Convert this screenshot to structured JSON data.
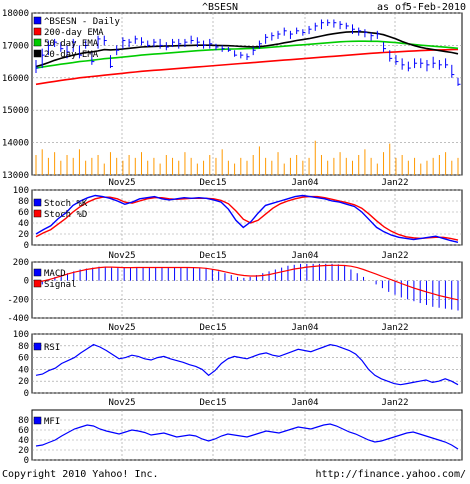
{
  "header": {
    "symbol": "^BSESN",
    "as_of_label": "as of",
    "date": "5-Feb-2010"
  },
  "footer": {
    "copyright": "Copyright 2010 Yahoo! Inc.",
    "url": "http://finance.yahoo.com/"
  },
  "colors": {
    "price_bar": "#0000ff",
    "ema200": "#ff0000",
    "ema50": "#00cc00",
    "ema20": "#000000",
    "volume": "#ff9900",
    "stoch_k": "#0000ff",
    "stoch_d": "#ff0000",
    "macd_hist": "#0000ff",
    "macd_signal": "#ff0000",
    "rsi": "#0000ff",
    "mfi": "#0000ff",
    "grid": "#999999"
  },
  "chart_data": [
    {
      "type": "line",
      "panel": "price",
      "legend": [
        "^BSESN - Daily",
        "200-day EMA",
        "50-day EMA",
        "20-day EMA"
      ],
      "ylim": [
        13000,
        18000
      ],
      "yticks": [
        13000,
        14000,
        15000,
        16000,
        17000,
        18000
      ],
      "xtick_labels": [
        "Nov25",
        "Dec15",
        "Jan04",
        "Jan22"
      ],
      "grid": true,
      "legend_placement": "top-left",
      "bars": [
        [
          0,
          16150,
          16550,
          16300
        ],
        [
          1,
          16300,
          16900,
          16700
        ],
        [
          2,
          16700,
          17150,
          17000
        ],
        [
          3,
          16950,
          17200,
          17100
        ],
        [
          4,
          16800,
          17100,
          16900
        ],
        [
          5,
          16600,
          17000,
          16800
        ],
        [
          6,
          16800,
          17200,
          17100
        ],
        [
          7,
          16600,
          17000,
          16700
        ],
        [
          8,
          16900,
          17150,
          17000
        ],
        [
          9,
          16400,
          16800,
          16500
        ],
        [
          10,
          16900,
          17300,
          17200
        ],
        [
          11,
          17000,
          17300,
          17150
        ],
        [
          12,
          16300,
          16700,
          16350
        ],
        [
          13,
          16700,
          17000,
          16850
        ],
        [
          14,
          16900,
          17250,
          17150
        ],
        [
          15,
          16950,
          17200,
          17100
        ],
        [
          16,
          17050,
          17300,
          17200
        ],
        [
          17,
          17000,
          17250,
          17100
        ],
        [
          18,
          16950,
          17150,
          17000
        ],
        [
          19,
          16950,
          17200,
          17100
        ],
        [
          20,
          16900,
          17200,
          17000
        ],
        [
          21,
          16850,
          17100,
          16950
        ],
        [
          22,
          16950,
          17200,
          17100
        ],
        [
          23,
          16900,
          17200,
          17050
        ],
        [
          24,
          16950,
          17200,
          17100
        ],
        [
          25,
          17050,
          17300,
          17150
        ],
        [
          26,
          16950,
          17250,
          17100
        ],
        [
          27,
          16900,
          17150,
          17000
        ],
        [
          28,
          16900,
          17200,
          17050
        ],
        [
          29,
          16850,
          17050,
          16950
        ],
        [
          30,
          16800,
          17000,
          16900
        ],
        [
          31,
          16800,
          16950,
          16850
        ],
        [
          32,
          16650,
          16850,
          16700
        ],
        [
          33,
          16600,
          16800,
          16700
        ],
        [
          34,
          16550,
          16750,
          16650
        ],
        [
          35,
          16700,
          16950,
          16850
        ],
        [
          36,
          16900,
          17150,
          17050
        ],
        [
          37,
          17050,
          17350,
          17250
        ],
        [
          38,
          17150,
          17400,
          17300
        ],
        [
          39,
          17200,
          17450,
          17350
        ],
        [
          40,
          17300,
          17550,
          17450
        ],
        [
          41,
          17200,
          17450,
          17350
        ],
        [
          42,
          17350,
          17550,
          17450
        ],
        [
          43,
          17300,
          17500,
          17400
        ],
        [
          44,
          17350,
          17600,
          17500
        ],
        [
          45,
          17450,
          17700,
          17600
        ],
        [
          46,
          17500,
          17800,
          17700
        ],
        [
          47,
          17600,
          17800,
          17700
        ],
        [
          48,
          17550,
          17800,
          17700
        ],
        [
          49,
          17500,
          17750,
          17650
        ],
        [
          50,
          17500,
          17700,
          17600
        ],
        [
          51,
          17350,
          17650,
          17500
        ],
        [
          52,
          17300,
          17550,
          17450
        ],
        [
          53,
          17250,
          17500,
          17400
        ],
        [
          54,
          17150,
          17400,
          17300
        ],
        [
          55,
          17200,
          17450,
          17350
        ],
        [
          56,
          16800,
          17100,
          16900
        ],
        [
          57,
          16500,
          16850,
          16600
        ],
        [
          58,
          16400,
          16700,
          16500
        ],
        [
          59,
          16250,
          16600,
          16400
        ],
        [
          60,
          16200,
          16500,
          16300
        ],
        [
          61,
          16300,
          16600,
          16450
        ],
        [
          62,
          16300,
          16600,
          16450
        ],
        [
          63,
          16200,
          16550,
          16400
        ],
        [
          64,
          16300,
          16650,
          16450
        ],
        [
          65,
          16250,
          16550,
          16400
        ],
        [
          66,
          16300,
          16600,
          16400
        ],
        [
          67,
          16000,
          16400,
          16100
        ],
        [
          68,
          15750,
          16000,
          15800
        ]
      ],
      "ema200": [
        15800,
        15830,
        15860,
        15890,
        15920,
        15945,
        15970,
        16000,
        16020,
        16040,
        16060,
        16080,
        16100,
        16120,
        16140,
        16160,
        16180,
        16200,
        16215,
        16230,
        16245,
        16260,
        16275,
        16290,
        16305,
        16320,
        16335,
        16350,
        16365,
        16380,
        16395,
        16410,
        16425,
        16440,
        16455,
        16470,
        16485,
        16500,
        16515,
        16530,
        16545,
        16560,
        16575,
        16590,
        16605,
        16620,
        16635,
        16650,
        16665,
        16680,
        16695,
        16710,
        16725,
        16740,
        16755,
        16770,
        16780,
        16790,
        16800,
        16810,
        16820,
        16830,
        16840,
        16850,
        16855,
        16860,
        16865,
        16870,
        16875
      ],
      "ema50": [
        16300,
        16330,
        16360,
        16390,
        16420,
        16445,
        16470,
        16500,
        16520,
        16540,
        16565,
        16590,
        16605,
        16620,
        16640,
        16660,
        16680,
        16700,
        16715,
        16730,
        16745,
        16760,
        16775,
        16790,
        16805,
        16820,
        16835,
        16850,
        16860,
        16870,
        16880,
        16885,
        16890,
        16895,
        16900,
        16905,
        16915,
        16930,
        16945,
        16960,
        16975,
        16990,
        17005,
        17020,
        17035,
        17050,
        17065,
        17080,
        17095,
        17110,
        17120,
        17125,
        17130,
        17130,
        17128,
        17125,
        17115,
        17100,
        17085,
        17065,
        17045,
        17025,
        17005,
        16990,
        16975,
        16960,
        16945,
        16930,
        16910
      ],
      "ema20": [
        16350,
        16400,
        16470,
        16540,
        16600,
        16650,
        16700,
        16740,
        16780,
        16800,
        16830,
        16870,
        16860,
        16870,
        16890,
        16910,
        16930,
        16950,
        16960,
        16970,
        16975,
        16980,
        16985,
        16990,
        16995,
        17000,
        17005,
        17005,
        17005,
        17000,
        16995,
        16990,
        16980,
        16970,
        16960,
        16955,
        16960,
        16980,
        17010,
        17040,
        17080,
        17110,
        17150,
        17180,
        17210,
        17250,
        17290,
        17330,
        17360,
        17390,
        17410,
        17420,
        17420,
        17410,
        17390,
        17370,
        17330,
        17270,
        17200,
        17120,
        17050,
        16990,
        16940,
        16900,
        16870,
        16840,
        16810,
        16780,
        16740
      ]
    },
    {
      "type": "bar",
      "panel": "volume",
      "values": [
        7,
        9,
        6,
        8,
        5,
        7,
        6,
        9,
        5,
        6,
        7,
        4,
        8,
        6,
        5,
        7,
        6,
        8,
        5,
        6,
        4,
        7,
        6,
        5,
        8,
        6,
        4,
        5,
        7,
        6,
        9,
        5,
        4,
        6,
        5,
        7,
        10,
        6,
        5,
        8,
        4,
        6,
        7,
        5,
        6,
        12,
        7,
        5,
        6,
        8,
        6,
        5,
        7,
        9,
        6,
        4,
        8,
        11,
        6,
        7,
        5,
        6,
        4,
        5,
        6,
        7,
        8,
        5,
        6
      ],
      "ymax": 14
    },
    {
      "type": "line",
      "panel": "stochastic",
      "legend": [
        "Stoch %K",
        "Stoch %D"
      ],
      "ylim": [
        0,
        100
      ],
      "yticks": [
        0,
        20,
        40,
        60,
        80,
        100
      ],
      "k": [
        20,
        28,
        35,
        48,
        58,
        72,
        80,
        86,
        90,
        88,
        85,
        80,
        74,
        78,
        84,
        86,
        88,
        84,
        82,
        84,
        86,
        85,
        86,
        85,
        82,
        78,
        65,
        45,
        32,
        42,
        58,
        72,
        76,
        80,
        84,
        88,
        90,
        88,
        86,
        84,
        80,
        78,
        74,
        70,
        60,
        46,
        32,
        24,
        18,
        14,
        12,
        10,
        12,
        14,
        16,
        12,
        8,
        5
      ],
      "d": [
        15,
        22,
        28,
        38,
        48,
        60,
        70,
        78,
        84,
        87,
        87,
        84,
        78,
        76,
        80,
        84,
        86,
        86,
        84,
        83,
        84,
        85,
        85,
        85,
        84,
        81,
        75,
        62,
        47,
        40,
        45,
        56,
        67,
        75,
        80,
        84,
        87,
        88,
        88,
        86,
        83,
        80,
        77,
        73,
        67,
        56,
        44,
        33,
        25,
        19,
        15,
        13,
        12,
        13,
        14,
        14,
        12,
        9
      ]
    },
    {
      "type": "bar",
      "panel": "macd",
      "legend": [
        "MACD",
        "Signal"
      ],
      "ylim": [
        -400,
        200
      ],
      "yticks": [
        -400,
        -200,
        0,
        200
      ],
      "hist": [
        -20,
        -40,
        10,
        40,
        60,
        80,
        100,
        120,
        130,
        140,
        150,
        150,
        140,
        135,
        140,
        145,
        145,
        140,
        140,
        140,
        140,
        140,
        140,
        140,
        140,
        140,
        140,
        135,
        120,
        100,
        80,
        60,
        40,
        30,
        40,
        60,
        80,
        100,
        120,
        140,
        160,
        170,
        180,
        180,
        180,
        180,
        180,
        180,
        175,
        160,
        120,
        80,
        40,
        0,
        -40,
        -80,
        -120,
        -150,
        -180,
        -200,
        -220,
        -240,
        -260,
        -280,
        -290,
        -300,
        -310,
        -320
      ],
      "signal": [
        -10,
        -5,
        10,
        30,
        50,
        70,
        90,
        105,
        120,
        130,
        140,
        145,
        145,
        142,
        140,
        140,
        141,
        141,
        141,
        141,
        141,
        141,
        141,
        141,
        141,
        140,
        138,
        132,
        122,
        110,
        95,
        80,
        65,
        55,
        50,
        50,
        55,
        65,
        80,
        95,
        110,
        125,
        135,
        145,
        152,
        158,
        162,
        165,
        165,
        162,
        155,
        140,
        120,
        95,
        70,
        45,
        20,
        -5,
        -30,
        -55,
        -80,
        -100,
        -120,
        -140,
        -160,
        -175,
        -190,
        -205
      ]
    },
    {
      "type": "line",
      "panel": "rsi",
      "legend": [
        "RSI"
      ],
      "ylim": [
        0,
        100
      ],
      "yticks": [
        0,
        20,
        40,
        60,
        80,
        100
      ],
      "values": [
        30,
        32,
        38,
        42,
        50,
        55,
        60,
        68,
        75,
        82,
        78,
        72,
        65,
        58,
        60,
        64,
        62,
        58,
        56,
        60,
        62,
        58,
        55,
        52,
        48,
        45,
        40,
        30,
        38,
        50,
        58,
        62,
        60,
        58,
        62,
        66,
        68,
        64,
        62,
        66,
        70,
        74,
        72,
        70,
        74,
        78,
        82,
        80,
        76,
        72,
        66,
        55,
        40,
        30,
        24,
        20,
        16,
        14,
        16,
        18,
        20,
        22,
        18,
        20,
        24,
        20,
        14
      ]
    },
    {
      "type": "line",
      "panel": "mfi",
      "legend": [
        "MFI"
      ],
      "ylim": [
        0,
        100
      ],
      "yticks": [
        0,
        20,
        40,
        60,
        80
      ],
      "values": [
        28,
        30,
        35,
        40,
        48,
        55,
        62,
        66,
        70,
        68,
        62,
        58,
        55,
        52,
        56,
        60,
        58,
        55,
        50,
        52,
        54,
        50,
        46,
        48,
        50,
        48,
        42,
        38,
        42,
        48,
        52,
        50,
        48,
        46,
        50,
        54,
        58,
        56,
        54,
        58,
        62,
        66,
        64,
        62,
        66,
        70,
        72,
        68,
        62,
        56,
        52,
        46,
        40,
        36,
        38,
        42,
        46,
        50,
        54,
        56,
        52,
        48,
        44,
        40,
        36,
        30,
        22
      ]
    }
  ]
}
